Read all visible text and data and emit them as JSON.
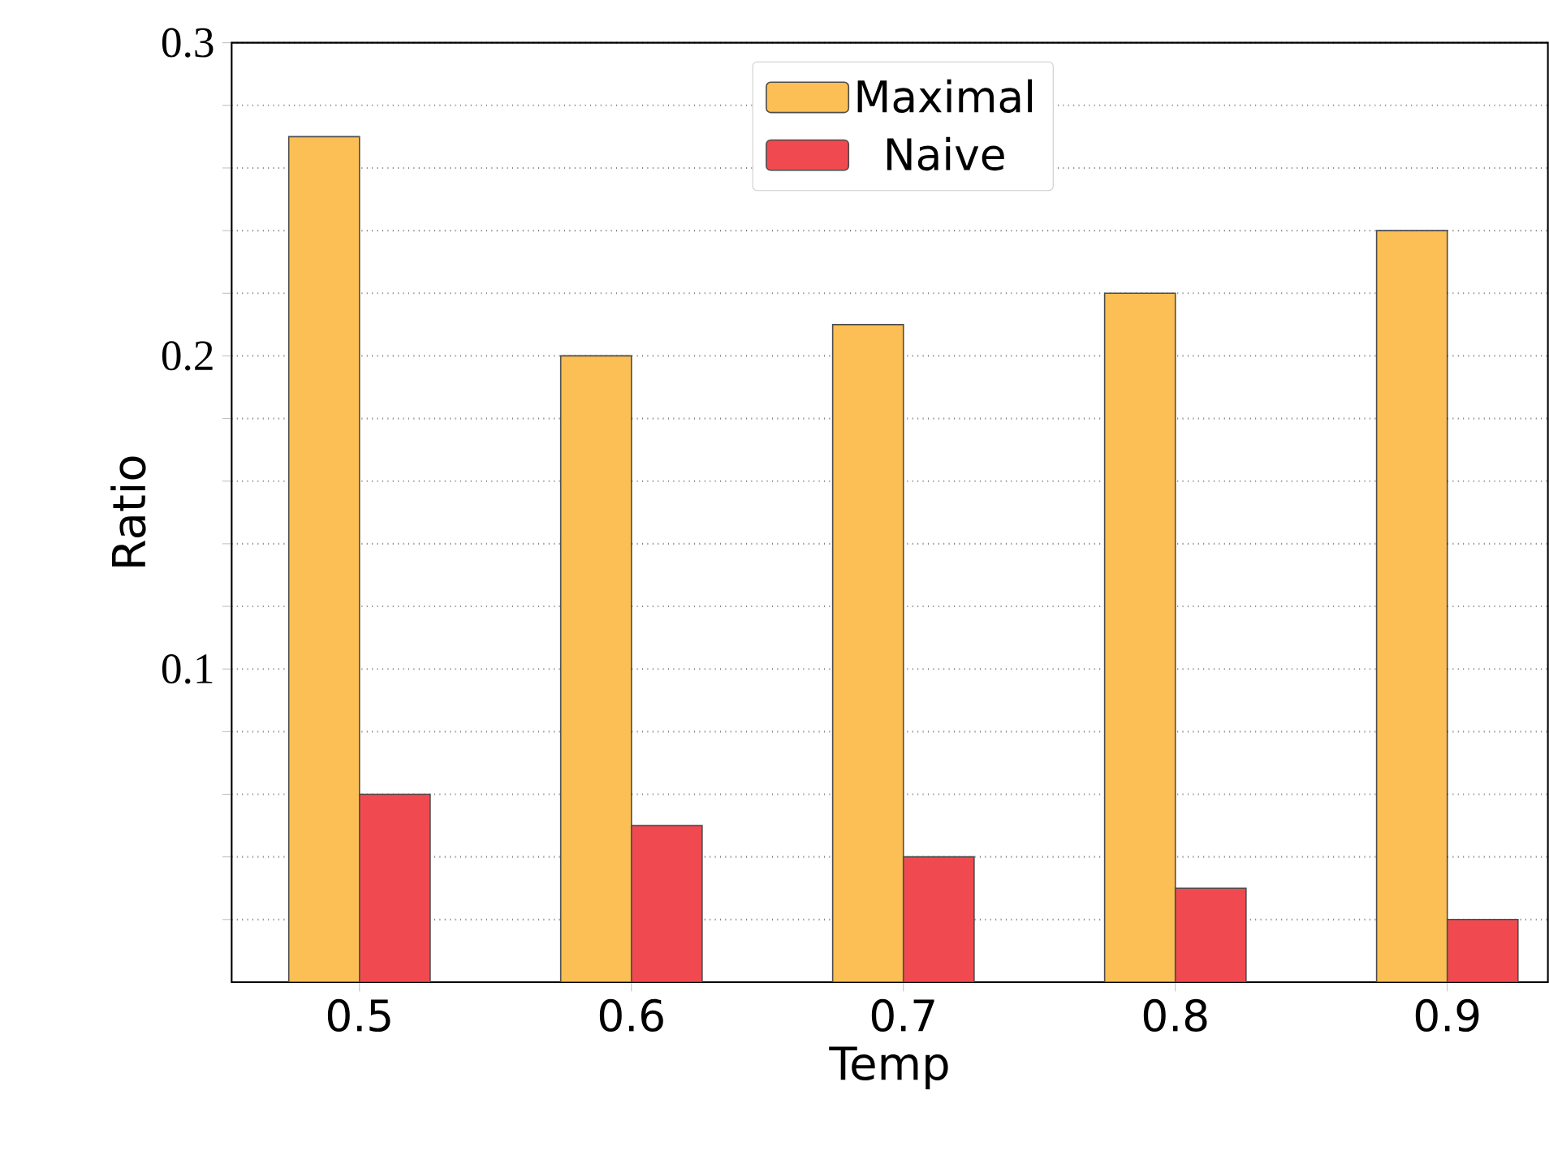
{
  "chart_data": {
    "type": "bar",
    "xlabel": "Temp",
    "ylabel": "Ratio",
    "categories": [
      "0.5",
      "0.6",
      "0.7",
      "0.8",
      "0.9"
    ],
    "series": [
      {
        "name": "Maximal",
        "color": "#fbbf55",
        "values": [
          0.27,
          0.2,
          0.21,
          0.22,
          0.24
        ]
      },
      {
        "name": "Naive",
        "color": "#f04a50",
        "values": [
          0.06,
          0.05,
          0.04,
          0.03,
          0.02
        ]
      }
    ],
    "ylim": [
      0,
      0.3
    ],
    "yticks": [
      {
        "value": 0.02,
        "label": null
      },
      {
        "value": 0.04,
        "label": null
      },
      {
        "value": 0.06,
        "label": null
      },
      {
        "value": 0.08,
        "label": null
      },
      0.1,
      {
        "value": 0.12,
        "label": null
      },
      {
        "value": 0.14,
        "label": null
      },
      {
        "value": 0.16,
        "label": null
      },
      {
        "value": 0.18,
        "label": null
      },
      0.2,
      {
        "value": 0.22,
        "label": null
      },
      {
        "value": 0.24,
        "label": null
      },
      {
        "value": 0.26,
        "label": null
      },
      {
        "value": 0.28,
        "label": null
      },
      0.3
    ],
    "grid": "y",
    "legend": "top"
  }
}
